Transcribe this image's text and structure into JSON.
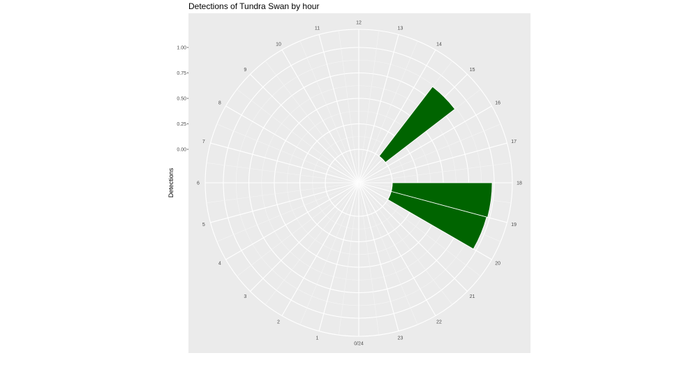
{
  "chart_data": {
    "type": "bar",
    "coord": "polar",
    "title": "Detections of Tundra Swan by hour",
    "ylabel": "Detections",
    "xlabel": "",
    "ylim": [
      0,
      1.0
    ],
    "y_ticks": [
      "0.00",
      "0.25",
      "0.50",
      "0.75",
      "1.00"
    ],
    "y_tick_values": [
      0,
      0.25,
      0.5,
      0.75,
      1.0
    ],
    "hour_labels": [
      "0/24",
      "1",
      "2",
      "3",
      "4",
      "5",
      "6",
      "7",
      "8",
      "9",
      "10",
      "11",
      "12",
      "13",
      "14",
      "15",
      "16",
      "17",
      "18",
      "19",
      "20",
      "21",
      "22",
      "23"
    ],
    "hours": [
      14.5,
      18,
      19
    ],
    "values": [
      0.86,
      0.98,
      0.97
    ],
    "bar_color": "#006400",
    "panel_color": "#EBEBEB",
    "grid": true
  }
}
